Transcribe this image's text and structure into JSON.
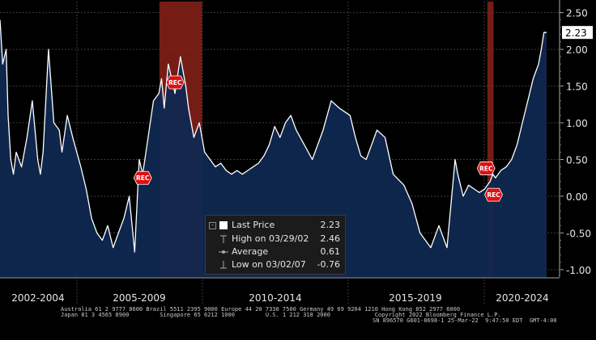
{
  "chart_data": {
    "type": "area",
    "title": "",
    "xlabel": "",
    "ylabel": "",
    "x_tick_labels": [
      "2002-2004",
      "2005-2009",
      "2010-2014",
      "2015-2019",
      "2020-2024"
    ],
    "y_ticks": [
      2.5,
      2.0,
      1.5,
      1.0,
      0.5,
      0.0,
      -0.5,
      -1.0
    ],
    "y_tick_labels": [
      "2.50",
      "2.00",
      "1.50",
      "1.00",
      "0.50",
      "0.00",
      "-0.50",
      "-1.00"
    ],
    "ylim": [
      -1.1,
      2.65
    ],
    "xlim": [
      2002.0,
      2022.75
    ],
    "grid": true,
    "series": [
      {
        "x": [
          2002.0,
          2002.1,
          2002.23,
          2002.3,
          2002.4,
          2002.5,
          2002.6,
          2002.8,
          2003.0,
          2003.2,
          2003.4,
          2003.5,
          2003.6,
          2003.8,
          2004.0,
          2004.2,
          2004.3,
          2004.5,
          2004.7,
          2005.0,
          2005.2,
          2005.4,
          2005.6,
          2005.8,
          2006.0,
          2006.2,
          2006.4,
          2006.6,
          2006.8,
          2007.0,
          2007.17,
          2007.3,
          2007.5,
          2007.7,
          2007.9,
          2008.0,
          2008.1,
          2008.25,
          2008.5,
          2008.7,
          2008.9,
          2009.0,
          2009.2,
          2009.4,
          2009.6,
          2009.8,
          2010.0,
          2010.2,
          2010.4,
          2010.6,
          2010.8,
          2011.0,
          2011.2,
          2011.4,
          2011.6,
          2011.8,
          2012.0,
          2012.2,
          2012.4,
          2012.6,
          2012.8,
          2013.0,
          2013.3,
          2013.6,
          2014.0,
          2014.3,
          2014.6,
          2015.0,
          2015.2,
          2015.4,
          2015.6,
          2015.8,
          2016.0,
          2016.3,
          2016.6,
          2017.0,
          2017.3,
          2017.6,
          2018.0,
          2018.3,
          2018.6,
          2018.9,
          2019.0,
          2019.2,
          2019.4,
          2019.6,
          2019.8,
          2020.0,
          2020.1,
          2020.2,
          2020.3,
          2020.4,
          2020.6,
          2020.8,
          2021.0,
          2021.2,
          2021.4,
          2021.6,
          2021.8,
          2022.0,
          2022.1,
          2022.2,
          2022.3
        ],
        "values": [
          2.4,
          1.8,
          2.0,
          1.1,
          0.5,
          0.3,
          0.6,
          0.4,
          0.8,
          1.3,
          0.5,
          0.3,
          0.6,
          2.0,
          1.0,
          0.9,
          0.6,
          1.1,
          0.8,
          0.4,
          0.1,
          -0.3,
          -0.5,
          -0.6,
          -0.4,
          -0.7,
          -0.5,
          -0.3,
          0.0,
          -0.76,
          0.5,
          0.3,
          0.8,
          1.3,
          1.4,
          1.6,
          1.2,
          1.8,
          1.4,
          1.9,
          1.5,
          1.2,
          0.8,
          1.0,
          0.6,
          0.5,
          0.4,
          0.45,
          0.35,
          0.3,
          0.35,
          0.3,
          0.35,
          0.4,
          0.45,
          0.55,
          0.7,
          0.95,
          0.8,
          1.0,
          1.1,
          0.9,
          0.7,
          0.5,
          0.9,
          1.3,
          1.2,
          1.1,
          0.8,
          0.55,
          0.5,
          0.7,
          0.9,
          0.8,
          0.3,
          0.15,
          -0.1,
          -0.5,
          -0.7,
          -0.4,
          -0.7,
          0.5,
          0.3,
          0.0,
          0.15,
          0.1,
          0.05,
          0.1,
          0.15,
          0.2,
          0.3,
          0.25,
          0.35,
          0.4,
          0.5,
          0.7,
          1.0,
          1.3,
          1.6,
          1.8,
          2.0,
          2.23,
          2.23
        ]
      }
    ],
    "recessions": [
      [
        2007.92,
        2009.5
      ],
      [
        2020.1,
        2020.33
      ]
    ],
    "rec_markers": [
      {
        "x": 2007.3,
        "y": 0.25,
        "label": "REC"
      },
      {
        "x": 2008.5,
        "y": 1.55,
        "label": "REC"
      },
      {
        "x": 2020.05,
        "y": 0.38,
        "label": "REC"
      },
      {
        "x": 2020.33,
        "y": 0.02,
        "label": "REC"
      }
    ],
    "last_value_label": "2.23",
    "colors": {
      "background": "#000000",
      "area_fill": "#102850",
      "line": "#ffffff",
      "recession": "#8a2219",
      "rec_marker": "#e01010",
      "grid": "#3c3c3c",
      "text": "#e6e6e6"
    }
  },
  "legend": {
    "items": [
      {
        "label": "Last Price",
        "value": "2.23"
      },
      {
        "label": "High on 03/29/02",
        "value": "2.46"
      },
      {
        "label": "Average",
        "value": "0.61"
      },
      {
        "label": "Low on 03/02/07",
        "value": "-0.76"
      }
    ],
    "toggle_icon": "box-icon"
  },
  "footer": {
    "line1": "Australia 61 2 9777 8600 Brazil 5511 2395 9000 Europe 44 20 7330 7500 Germany 49 69 9204 1210 Hong Kong 852 2977 6000",
    "line2": "Japan 81 3 4565 8900         Singapore 65 6212 1000         U.S. 1 212 318 2000             Copyright 2022 Bloomberg Finance L.P.",
    "line3": "SN 896570 G601-8698-1 25-Mar-22  9:47:50 EDT  GMT-4:00"
  }
}
